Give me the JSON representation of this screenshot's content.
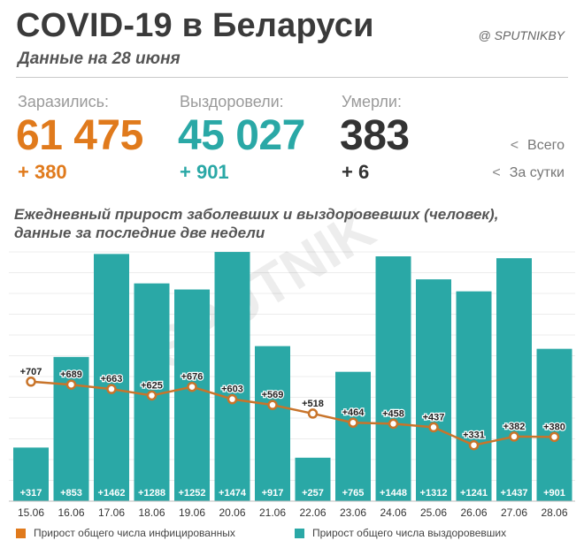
{
  "header": {
    "title": "COVID-19 в Беларуси",
    "subtitle": "Данные на 28 июня",
    "source": "@ SPUTNIKBY"
  },
  "stats": {
    "infected": {
      "label": "Заразились:",
      "total": "61 475",
      "daily": "+ 380"
    },
    "recovered": {
      "label": "Выздоровели:",
      "total": "45 027",
      "daily": "+ 901"
    },
    "deaths": {
      "label": "Умерли:",
      "total": "383",
      "daily": "+ 6"
    }
  },
  "key": {
    "total_label": "Всего",
    "daily_label": "За сутки",
    "arrow": "<"
  },
  "watermark": "SPUTNIK",
  "colors": {
    "infected": "#e07a1c",
    "recovered": "#2aa8a6",
    "bar_fill": "#2aa8a6",
    "line": "#c8742a",
    "marker_fill": "#ffffff",
    "grid": "#ececec"
  },
  "chart_data": {
    "type": "bar",
    "title": "Ежедневный прирост заболевших и выздоровевших (человек), данные за последние две недели",
    "categories": [
      "15.06",
      "16.06",
      "17.06",
      "18.06",
      "19.06",
      "20.06",
      "21.06",
      "22.06",
      "23.06",
      "24.06",
      "25.06",
      "26.06",
      "27.06",
      "28.06"
    ],
    "series": [
      {
        "name": "Прирост общего числа выздоровевших",
        "type": "bar",
        "values": [
          317,
          853,
          1462,
          1288,
          1252,
          1474,
          917,
          257,
          765,
          1448,
          1312,
          1241,
          1437,
          901
        ],
        "labels": [
          "+317",
          "+853",
          "+1462",
          "+1288",
          "+1252",
          "+1474",
          "+917",
          "+257",
          "+765",
          "+1448",
          "+1312",
          "+1241",
          "+1437",
          "+901"
        ]
      },
      {
        "name": "Прирост общего числа инфицированных",
        "type": "line",
        "values": [
          707,
          689,
          663,
          625,
          676,
          603,
          569,
          518,
          464,
          458,
          437,
          331,
          382,
          380
        ],
        "labels": [
          "+707",
          "+689",
          "+663",
          "+625",
          "+676",
          "+603",
          "+569",
          "+518",
          "+464",
          "+458",
          "+437",
          "+331",
          "+382",
          "+380"
        ]
      }
    ],
    "ylim": [
      0,
      1490
    ],
    "grid": true,
    "legend_position": "bottom"
  }
}
